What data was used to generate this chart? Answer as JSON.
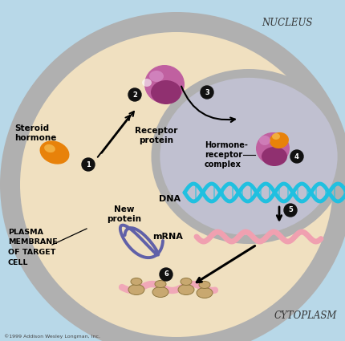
{
  "bg_blue": "#b8d8e8",
  "bg_cell": "#f0e0c0",
  "bg_nucleus": "#c0c0d0",
  "membrane_color": "#b0b0b0",
  "nucleus_label": "NUCLEUS",
  "cytoplasm_label": "CYTOPLASM",
  "copyright": "©1999 Addison Wesley Longman, Inc.",
  "labels": {
    "steroid_hormone": "Steroid\nhormone",
    "receptor_protein": "Receptor\nprotein",
    "hormone_receptor": "Hormone-\nreceptor\ncomplex",
    "dna": "DNA",
    "mrna": "mRNA",
    "new_protein": "New\nprotein",
    "plasma_membrane": "PLASMA\nMEMBRANE\nOF TARGET\nCELL"
  },
  "step_color": "#111111",
  "orange_color": "#e8820a",
  "orange_hi": "#f5b84a",
  "purple_light": "#c060a0",
  "purple_dark": "#903070",
  "purple_hi": "#d890c8",
  "dna_color": "#20c0e0",
  "mrna_color": "#f0a0b0",
  "protein_chain_color": "#6060a8",
  "ribosome_color": "#c8a870",
  "pink_ribbon": "#f0a8b8"
}
